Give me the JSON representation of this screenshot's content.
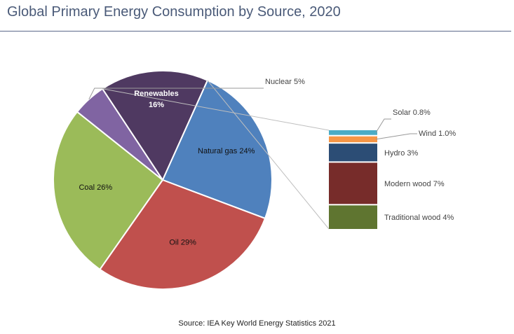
{
  "chart_data": {
    "type": "pie",
    "title": "Global Primary Energy Consumption by Source, 2020",
    "source": "Source: IEA Key World Energy Statistics 2021",
    "slices": [
      {
        "name": "Coal",
        "value": 26,
        "label": "Coal 26%",
        "color": "#9bbb59"
      },
      {
        "name": "Nuclear",
        "value": 5,
        "label": "Nuclear 5%",
        "color": "#8064a2"
      },
      {
        "name": "Renewables",
        "value": 16,
        "label": "Renewables",
        "label2": "16%",
        "color": "#4f3961"
      },
      {
        "name": "Natural gas",
        "value": 24,
        "label": "Natural gas 24%",
        "color": "#4f81bd"
      },
      {
        "name": "Oil",
        "value": 29,
        "label": "Oil 29%",
        "color": "#c0504d"
      }
    ],
    "breakdown": {
      "parent": "Renewables",
      "type": "stacked-bar",
      "segments": [
        {
          "name": "Solar",
          "value": 0.8,
          "label": "Solar 0.8%",
          "color": "#4bacc6"
        },
        {
          "name": "Wind",
          "value": 1.0,
          "label": "Wind 1.0%",
          "color": "#f79646"
        },
        {
          "name": "Hydro",
          "value": 3,
          "label": "Hydro 3%",
          "color": "#2c4d75"
        },
        {
          "name": "Modern wood",
          "value": 7,
          "label": "Modern wood 7%",
          "color": "#772c2a"
        },
        {
          "name": "Traditional wood",
          "value": 4,
          "label": "Traditional wood 4%",
          "color": "#5f7530"
        }
      ]
    }
  }
}
